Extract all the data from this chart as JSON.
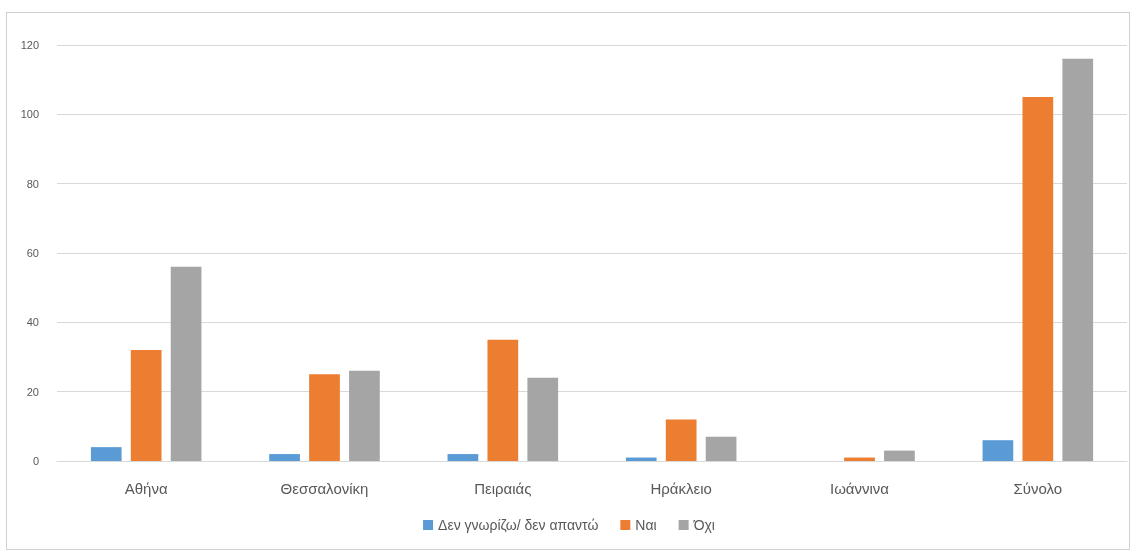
{
  "chart_data": {
    "type": "bar",
    "categories": [
      "Αθήνα",
      "Θεσσαλονίκη",
      "Πειραιάς",
      "Ηράκλειο",
      "Ιωάννινα",
      "Σύνολο"
    ],
    "series": [
      {
        "name": "Δεν γνωρίζω/ δεν απαντώ",
        "color": "#5b9bd5",
        "values": [
          4,
          2,
          2,
          1,
          0,
          6
        ]
      },
      {
        "name": "Ναι",
        "color": "#ed7d31",
        "values": [
          32,
          25,
          35,
          12,
          1,
          105
        ]
      },
      {
        "name": "Όχι",
        "color": "#a5a5a5",
        "values": [
          56,
          26,
          24,
          7,
          3,
          116
        ]
      }
    ],
    "ylim": [
      0,
      120
    ],
    "yticks": [
      0,
      20,
      40,
      60,
      80,
      100,
      120
    ],
    "grid": "y",
    "legend": "bottom"
  }
}
